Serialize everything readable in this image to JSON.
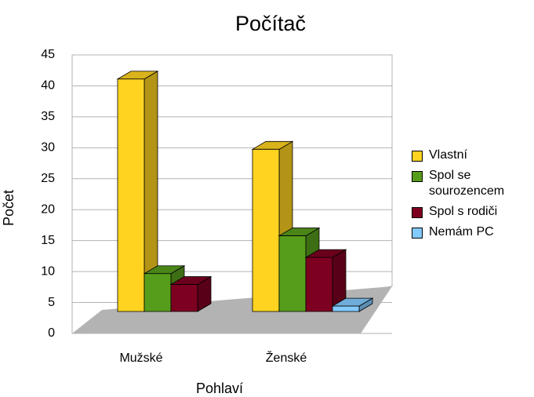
{
  "chart_data": {
    "type": "bar3d",
    "title": "Počítač",
    "x_label": "Pohlaví",
    "y_label": "Počet",
    "categories": [
      "Mužské",
      "Ženské"
    ],
    "series": [
      {
        "name": "Vlastní",
        "color": "#ffd320",
        "values": [
          43,
          30
        ]
      },
      {
        "name": "Spol se sourozencem",
        "color": "#579d1c",
        "values": [
          7,
          14
        ]
      },
      {
        "name": "Spol s rodiči",
        "color": "#7e0021",
        "values": [
          5,
          10
        ]
      },
      {
        "name": "Nemám PC",
        "color": "#83caff",
        "values": [
          0,
          1
        ]
      }
    ],
    "ylim": [
      0,
      45
    ],
    "yticks": [
      0,
      5,
      10,
      15,
      20,
      25,
      30,
      35,
      40,
      45
    ],
    "grid": true,
    "legend": "right"
  }
}
